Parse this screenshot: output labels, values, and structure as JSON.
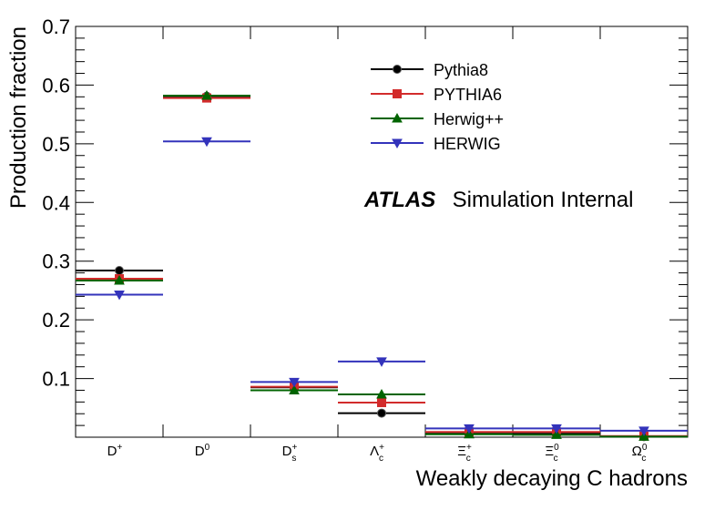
{
  "chart_data": {
    "type": "scatter",
    "xlabel": "Weakly decaying C hadrons",
    "ylabel": "Production fraction",
    "ylim": [
      0,
      0.7
    ],
    "yticks": [
      "0.1",
      "0.2",
      "0.3",
      "0.4",
      "0.5",
      "0.6",
      "0.7"
    ],
    "categories": [
      {
        "base": "D",
        "sup": "+",
        "sub": ""
      },
      {
        "base": "D",
        "sup": "0",
        "sub": ""
      },
      {
        "base": "D",
        "sup": "+",
        "sub": "s"
      },
      {
        "base": "Λ",
        "sup": "+",
        "sub": "c"
      },
      {
        "base": "Ξ",
        "sup": "+",
        "sub": "c"
      },
      {
        "base": "Ξ",
        "sup": "0",
        "sub": "c"
      },
      {
        "base": "Ω",
        "sup": "0",
        "sub": "c"
      }
    ],
    "series": [
      {
        "name": "Pythia8",
        "color": "#000000",
        "marker": "circle",
        "values": [
          0.284,
          0.581,
          0.085,
          0.041,
          0.006,
          0.006,
          0.001
        ]
      },
      {
        "name": "PYTHIA6",
        "color": "#d22b2b",
        "marker": "square",
        "values": [
          0.27,
          0.578,
          0.086,
          0.059,
          0.009,
          0.009,
          0.002
        ]
      },
      {
        "name": "Herwig++",
        "color": "#006400",
        "marker": "triangle-up",
        "values": [
          0.267,
          0.582,
          0.08,
          0.073,
          0.005,
          0.004,
          0.001
        ]
      },
      {
        "name": "HERWIG",
        "color": "#3333bb",
        "marker": "triangle-down",
        "values": [
          0.243,
          0.504,
          0.094,
          0.129,
          0.015,
          0.015,
          0.011
        ]
      }
    ],
    "legend_position": "top-right",
    "annotation": {
      "bold": "ATLAS",
      "text": "Simulation Internal"
    }
  }
}
